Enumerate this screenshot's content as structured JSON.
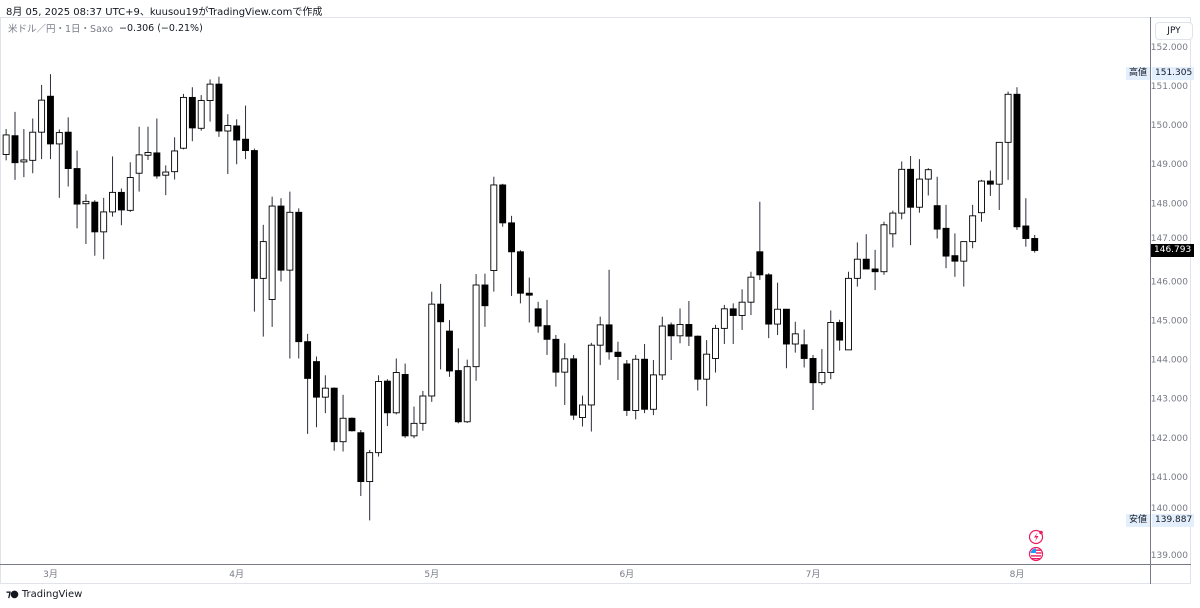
{
  "header": {
    "title": "8月 05, 2025 08:37 UTC+9、kuusou19がTradingView.comで作成"
  },
  "legend": {
    "symbol": "米ドル／円・1日・Saxo",
    "change": "−0.306 (−0.21%)"
  },
  "price_scale": {
    "currency": "JPY"
  },
  "markers": {
    "high_label": "高値",
    "high_value": "151.305",
    "low_label": "安値",
    "low_value": "139.887",
    "last_value": "146.793"
  },
  "footer": {
    "brand": "TradingView"
  },
  "icons": {
    "event1": "lightning-icon",
    "event2": "us-flag-icon"
  },
  "colors": {
    "up_body": "#ffffff",
    "down_body": "#000000",
    "wick": "#000000",
    "last_bg": "#000000",
    "hl_bg": "#e3effd",
    "event": "#e91e63"
  },
  "chart_data": {
    "type": "candlestick",
    "title": "",
    "ylim": [
      139,
      152
    ],
    "yticks": [
      "152.000",
      "151.000",
      "150.000",
      "149.000",
      "148.000",
      "147.000",
      "146.000",
      "145.000",
      "144.000",
      "143.000",
      "142.000",
      "141.000",
      "140.000",
      "139.000"
    ],
    "month_labels": [
      {
        "label": "3月",
        "date": "2025-03-03"
      },
      {
        "label": "4月",
        "date": "2025-04-01"
      },
      {
        "label": "5月",
        "date": "2025-05-01"
      },
      {
        "label": "6月",
        "date": "2025-06-02"
      },
      {
        "label": "7月",
        "date": "2025-07-01"
      },
      {
        "label": "8月",
        "date": "2025-08-01"
      }
    ],
    "grid": false,
    "columns": [
      "date",
      "open",
      "high",
      "low",
      "close"
    ],
    "candles": [
      [
        "2025-02-24",
        149.25,
        149.9,
        149.1,
        149.75
      ],
      [
        "2025-02-25",
        149.73,
        150.34,
        148.6,
        149.04
      ],
      [
        "2025-02-26",
        149.06,
        149.9,
        148.67,
        149.11
      ],
      [
        "2025-02-27",
        149.1,
        150.17,
        148.77,
        149.82
      ],
      [
        "2025-02-28",
        149.82,
        151.03,
        149.13,
        150.64
      ],
      [
        "2025-03-03",
        150.74,
        151.305,
        149.13,
        149.52
      ],
      [
        "2025-03-04",
        149.52,
        149.89,
        148.14,
        149.81
      ],
      [
        "2025-03-05",
        149.82,
        150.2,
        148.43,
        148.89
      ],
      [
        "2025-03-06",
        148.89,
        149.35,
        147.36,
        147.98
      ],
      [
        "2025-03-07",
        147.99,
        148.23,
        146.96,
        148.05
      ],
      [
        "2025-03-10",
        148.03,
        148.08,
        146.66,
        147.27
      ],
      [
        "2025-03-11",
        147.27,
        148.14,
        146.57,
        147.78
      ],
      [
        "2025-03-12",
        147.78,
        149.2,
        147.66,
        148.28
      ],
      [
        "2025-03-13",
        148.28,
        148.38,
        147.44,
        147.83
      ],
      [
        "2025-03-14",
        147.82,
        149.05,
        147.78,
        148.66
      ],
      [
        "2025-03-17",
        148.77,
        149.96,
        148.3,
        149.24
      ],
      [
        "2025-03-18",
        149.23,
        149.96,
        149.11,
        149.3
      ],
      [
        "2025-03-19",
        149.29,
        150.17,
        148.63,
        148.7
      ],
      [
        "2025-03-20",
        148.72,
        148.97,
        148.21,
        148.8
      ],
      [
        "2025-03-21",
        148.81,
        149.69,
        148.61,
        149.34
      ],
      [
        "2025-03-24",
        149.41,
        150.8,
        149.38,
        150.71
      ],
      [
        "2025-03-25",
        150.71,
        150.97,
        149.59,
        149.93
      ],
      [
        "2025-03-26",
        149.92,
        150.77,
        149.86,
        150.63
      ],
      [
        "2025-03-27",
        150.63,
        151.17,
        150.09,
        151.05
      ],
      [
        "2025-03-28",
        151.05,
        151.24,
        149.7,
        149.85
      ],
      [
        "2025-03-31",
        149.85,
        150.28,
        148.75,
        149.99
      ],
      [
        "2025-04-01",
        149.98,
        150.15,
        149.0,
        149.62
      ],
      [
        "2025-04-02",
        149.64,
        150.5,
        149.13,
        149.35
      ],
      [
        "2025-04-03",
        149.35,
        149.4,
        145.23,
        146.08
      ],
      [
        "2025-04-04",
        146.08,
        147.45,
        144.59,
        147.02
      ],
      [
        "2025-04-07",
        145.54,
        148.17,
        144.84,
        147.93
      ],
      [
        "2025-04-08",
        147.93,
        148.13,
        146.0,
        146.29
      ],
      [
        "2025-04-09",
        146.29,
        148.3,
        144.03,
        147.77
      ],
      [
        "2025-04-10",
        147.77,
        147.87,
        144.03,
        144.46
      ],
      [
        "2025-04-11",
        144.46,
        144.66,
        142.1,
        143.52
      ],
      [
        "2025-04-14",
        143.95,
        144.08,
        142.27,
        143.04
      ],
      [
        "2025-04-15",
        143.04,
        143.6,
        142.63,
        143.27
      ],
      [
        "2025-04-16",
        143.27,
        143.29,
        141.67,
        141.9
      ],
      [
        "2025-04-17",
        141.9,
        143.1,
        141.65,
        142.5
      ],
      [
        "2025-04-18",
        142.5,
        142.52,
        142.16,
        142.18
      ],
      [
        "2025-04-21",
        142.13,
        142.2,
        140.51,
        140.88
      ],
      [
        "2025-04-22",
        140.88,
        141.69,
        139.887,
        141.62
      ],
      [
        "2025-04-23",
        141.62,
        143.6,
        141.52,
        143.44
      ],
      [
        "2025-04-24",
        143.45,
        143.5,
        142.3,
        142.64
      ],
      [
        "2025-04-25",
        142.64,
        144.03,
        142.6,
        143.67
      ],
      [
        "2025-04-28",
        143.62,
        143.9,
        142.0,
        142.05
      ],
      [
        "2025-04-29",
        142.05,
        142.8,
        141.99,
        142.37
      ],
      [
        "2025-04-30",
        142.37,
        143.2,
        142.18,
        143.07
      ],
      [
        "2025-05-01",
        143.07,
        145.74,
        142.92,
        145.42
      ],
      [
        "2025-05-02",
        145.42,
        145.94,
        143.75,
        144.97
      ],
      [
        "2025-05-05",
        144.73,
        145.01,
        143.56,
        143.71
      ],
      [
        "2025-05-06",
        143.72,
        144.29,
        142.37,
        142.41
      ],
      [
        "2025-05-07",
        142.41,
        144.0,
        142.38,
        143.82
      ],
      [
        "2025-05-08",
        143.82,
        146.19,
        143.46,
        145.91
      ],
      [
        "2025-05-09",
        145.91,
        146.2,
        144.84,
        145.38
      ],
      [
        "2025-05-12",
        146.28,
        148.68,
        145.74,
        148.47
      ],
      [
        "2025-05-13",
        148.47,
        148.5,
        147.4,
        147.5
      ],
      [
        "2025-05-14",
        147.5,
        147.68,
        145.63,
        146.76
      ],
      [
        "2025-05-15",
        146.76,
        146.8,
        145.44,
        145.7
      ],
      [
        "2025-05-16",
        145.7,
        146.1,
        144.95,
        145.65
      ],
      [
        "2025-05-19",
        145.3,
        145.48,
        144.69,
        144.86
      ],
      [
        "2025-05-20",
        144.87,
        145.53,
        144.12,
        144.52
      ],
      [
        "2025-05-21",
        144.52,
        144.63,
        143.31,
        143.68
      ],
      [
        "2025-05-22",
        143.68,
        144.42,
        142.84,
        144.02
      ],
      [
        "2025-05-23",
        144.02,
        144.12,
        142.46,
        142.58
      ],
      [
        "2025-05-26",
        142.52,
        143.08,
        142.29,
        142.84
      ],
      [
        "2025-05-27",
        142.84,
        144.43,
        142.16,
        144.37
      ],
      [
        "2025-05-28",
        144.37,
        145.1,
        143.86,
        144.89
      ],
      [
        "2025-05-29",
        144.89,
        146.3,
        144.0,
        144.2
      ],
      [
        "2025-05-30",
        144.19,
        144.46,
        143.48,
        144.08
      ],
      [
        "2025-06-02",
        143.89,
        143.99,
        142.56,
        142.7
      ],
      [
        "2025-06-03",
        142.7,
        144.12,
        142.47,
        144.01
      ],
      [
        "2025-06-04",
        144.01,
        144.4,
        142.63,
        142.73
      ],
      [
        "2025-06-05",
        142.73,
        143.99,
        142.58,
        143.61
      ],
      [
        "2025-06-06",
        143.61,
        145.1,
        143.48,
        144.86
      ],
      [
        "2025-06-09",
        144.89,
        144.95,
        143.99,
        144.61
      ],
      [
        "2025-06-10",
        144.61,
        145.31,
        144.42,
        144.9
      ],
      [
        "2025-06-11",
        144.9,
        145.5,
        144.35,
        144.6
      ],
      [
        "2025-06-12",
        144.6,
        144.62,
        143.21,
        143.5
      ],
      [
        "2025-06-13",
        143.5,
        144.5,
        142.81,
        144.14
      ],
      [
        "2025-06-16",
        144.03,
        144.89,
        143.67,
        144.8
      ],
      [
        "2025-06-17",
        144.8,
        145.4,
        144.4,
        145.3
      ],
      [
        "2025-06-18",
        145.3,
        145.44,
        144.4,
        145.13
      ],
      [
        "2025-06-19",
        145.13,
        145.8,
        144.76,
        145.47
      ],
      [
        "2025-06-20",
        145.47,
        146.25,
        145.14,
        146.11
      ],
      [
        "2025-06-23",
        146.76,
        148.04,
        146.04,
        146.17
      ],
      [
        "2025-06-24",
        146.17,
        146.21,
        144.55,
        144.91
      ],
      [
        "2025-06-25",
        144.91,
        145.97,
        144.63,
        145.29
      ],
      [
        "2025-06-26",
        145.29,
        145.3,
        143.78,
        144.4
      ],
      [
        "2025-06-27",
        144.4,
        144.97,
        144.18,
        144.66
      ],
      [
        "2025-06-30",
        144.38,
        144.77,
        143.8,
        144.03
      ],
      [
        "2025-07-01",
        144.03,
        144.12,
        142.71,
        143.41
      ],
      [
        "2025-07-02",
        143.41,
        144.27,
        143.35,
        143.67
      ],
      [
        "2025-07-03",
        143.67,
        145.26,
        143.5,
        144.95
      ],
      [
        "2025-07-04",
        144.95,
        145.02,
        144.23,
        144.5
      ],
      [
        "2025-07-07",
        144.25,
        146.25,
        144.25,
        146.08
      ],
      [
        "2025-07-08",
        146.08,
        147.0,
        145.87,
        146.57
      ],
      [
        "2025-07-09",
        146.57,
        147.21,
        146.32,
        146.32
      ],
      [
        "2025-07-10",
        146.32,
        146.81,
        145.78,
        146.25
      ],
      [
        "2025-07-11",
        146.25,
        147.53,
        146.17,
        147.45
      ],
      [
        "2025-07-14",
        147.22,
        147.81,
        146.87,
        147.75
      ],
      [
        "2025-07-15",
        147.75,
        149.07,
        147.59,
        148.87
      ],
      [
        "2025-07-16",
        148.87,
        149.21,
        146.93,
        147.9
      ],
      [
        "2025-07-17",
        147.9,
        149.13,
        147.76,
        148.62
      ],
      [
        "2025-07-18",
        148.62,
        148.9,
        148.2,
        148.86
      ],
      [
        "2025-07-21",
        147.94,
        148.68,
        147.1,
        147.34
      ],
      [
        "2025-07-22",
        147.36,
        147.96,
        146.34,
        146.65
      ],
      [
        "2025-07-23",
        146.66,
        147.23,
        146.12,
        146.52
      ],
      [
        "2025-07-24",
        146.52,
        147.02,
        145.87,
        147.02
      ],
      [
        "2025-07-25",
        147.02,
        147.96,
        146.85,
        147.68
      ],
      [
        "2025-07-28",
        147.76,
        148.6,
        147.53,
        148.57
      ],
      [
        "2025-07-29",
        148.57,
        148.84,
        148.19,
        148.49
      ],
      [
        "2025-07-30",
        148.49,
        149.56,
        147.83,
        149.56
      ],
      [
        "2025-07-31",
        149.56,
        150.86,
        148.6,
        150.79
      ],
      [
        "2025-08-01",
        150.79,
        150.97,
        147.32,
        147.4
      ],
      [
        "2025-08-04",
        147.42,
        148.13,
        146.89,
        147.1
      ],
      [
        "2025-08-05",
        147.1,
        147.19,
        146.74,
        146.793
      ]
    ]
  }
}
